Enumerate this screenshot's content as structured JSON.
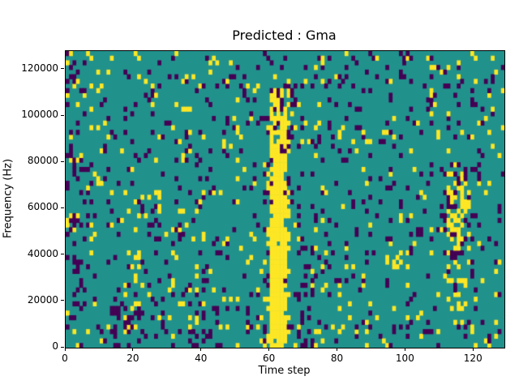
{
  "chart_data": {
    "type": "heatmap",
    "title": "Predicted : Gma",
    "xlabel": "Time step",
    "ylabel": "Frequency (Hz)",
    "xlim": [
      0,
      129
    ],
    "ylim": [
      0,
      128000
    ],
    "x_ticks": [
      0,
      20,
      40,
      60,
      80,
      100,
      120
    ],
    "y_ticks": [
      0,
      20000,
      40000,
      60000,
      80000,
      100000,
      120000
    ],
    "grid": false,
    "legend": "none",
    "colormap": "viridis",
    "value_colors": {
      "background": "#21918c",
      "low": "#440154",
      "high": "#fde725"
    },
    "grid_size": {
      "nx": 129,
      "ny": 64,
      "freq_per_bin": 2000
    },
    "pattern": {
      "seed": 42,
      "noise": {
        "low_prob": 0.075,
        "high_prob": 0.045
      },
      "features": [
        {
          "name": "main-yellow-band-core",
          "color": "high",
          "x0": 60,
          "x1": 64,
          "y0": 0,
          "y1": 54,
          "prob": 0.78
        },
        {
          "name": "main-yellow-band-bottom",
          "color": "high",
          "x0": 60,
          "x1": 63,
          "y0": 0,
          "y1": 27,
          "prob": 0.9
        },
        {
          "name": "main-yellow-band-halo",
          "color": "high",
          "x0": 59,
          "x1": 65,
          "y0": 0,
          "y1": 56,
          "prob": 0.18
        },
        {
          "name": "band-dark-flecks",
          "color": "low",
          "x0": 58,
          "x1": 66,
          "y0": 30,
          "y1": 56,
          "prob": 0.1
        },
        {
          "name": "right-yellow-cluster",
          "color": "high",
          "x0": 112,
          "x1": 118,
          "y0": 21,
          "y1": 37,
          "prob": 0.5
        },
        {
          "name": "right-yellow-lower",
          "color": "high",
          "x0": 112,
          "x1": 118,
          "y0": 8,
          "y1": 20,
          "prob": 0.18
        },
        {
          "name": "right-dark-flecks",
          "color": "low",
          "x0": 110,
          "x1": 119,
          "y0": 18,
          "y1": 40,
          "prob": 0.12
        },
        {
          "name": "bottomleft-dark-cluster",
          "color": "low",
          "x0": 13,
          "x1": 22,
          "y0": 0,
          "y1": 9,
          "prob": 0.3
        },
        {
          "name": "left-yellow-streak",
          "color": "high",
          "x0": 17,
          "x1": 22,
          "y0": 4,
          "y1": 20,
          "prob": 0.2
        },
        {
          "name": "left-edge-dark",
          "color": "low",
          "x0": 0,
          "x1": 6,
          "y0": 0,
          "y1": 63,
          "prob": 0.1
        },
        {
          "name": "mid-dark-column",
          "color": "low",
          "x0": 68,
          "x1": 72,
          "y0": 0,
          "y1": 30,
          "prob": 0.18
        },
        {
          "name": "mid-right-yellow-blob",
          "color": "high",
          "x0": 94,
          "x1": 100,
          "y0": 17,
          "y1": 23,
          "prob": 0.25
        },
        {
          "name": "bottom-mid-dark",
          "color": "low",
          "x0": 36,
          "x1": 44,
          "y0": 0,
          "y1": 8,
          "prob": 0.2
        }
      ]
    }
  }
}
